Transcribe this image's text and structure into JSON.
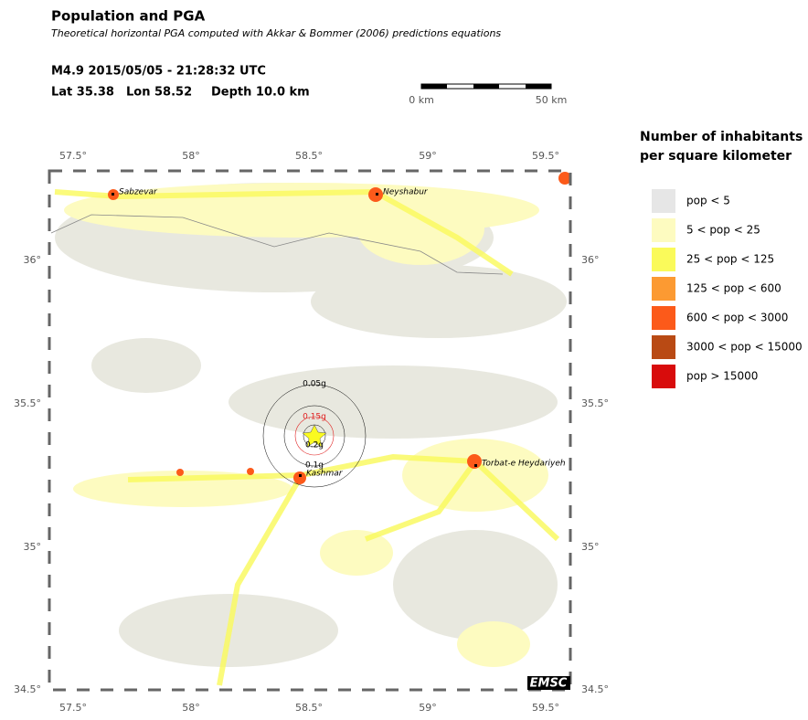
{
  "header": {
    "title": "Population and PGA",
    "subtitle": "Theoretical horizontal PGA computed with Akkar & Bommer (2006) predictions equations"
  },
  "event": {
    "origin": "M4.9  2015/05/05 - 21:28:32 UTC",
    "lat": "Lat 35.38",
    "lon": "Lon 58.52",
    "depth": "Depth  10.0 km"
  },
  "scale_bar": {
    "start": "0 km",
    "end": "50 km"
  },
  "map": {
    "lon_labels": [
      "57.5°",
      "58°",
      "58.5°",
      "59°",
      "59.5°"
    ],
    "lat_labels": [
      "36°",
      "35.5°",
      "35°",
      "34.5°"
    ],
    "cities": [
      "Sabzevar",
      "Neyshabur",
      "Kashmar",
      "Torbat-e Heydariyeh"
    ],
    "pga_rings": [
      "0.05g",
      "0.1g",
      "0.15g",
      "0.2g"
    ],
    "logo": "EMSC"
  },
  "legend": {
    "title": [
      "Number of inhabitants",
      "per square kilometer"
    ],
    "items": [
      {
        "label": "pop < 5",
        "color": "#e6e6e6"
      },
      {
        "label": "5 < pop < 25",
        "color": "#fdfbc0"
      },
      {
        "label": "25 < pop < 125",
        "color": "#fafa5a"
      },
      {
        "label": "125 < pop < 600",
        "color": "#fc9a32"
      },
      {
        "label": "600 < pop < 3000",
        "color": "#fc5a1a"
      },
      {
        "label": "3000 < pop < 15000",
        "color": "#b94a14"
      },
      {
        "label": "pop > 15000",
        "color": "#d80c0c"
      }
    ]
  }
}
